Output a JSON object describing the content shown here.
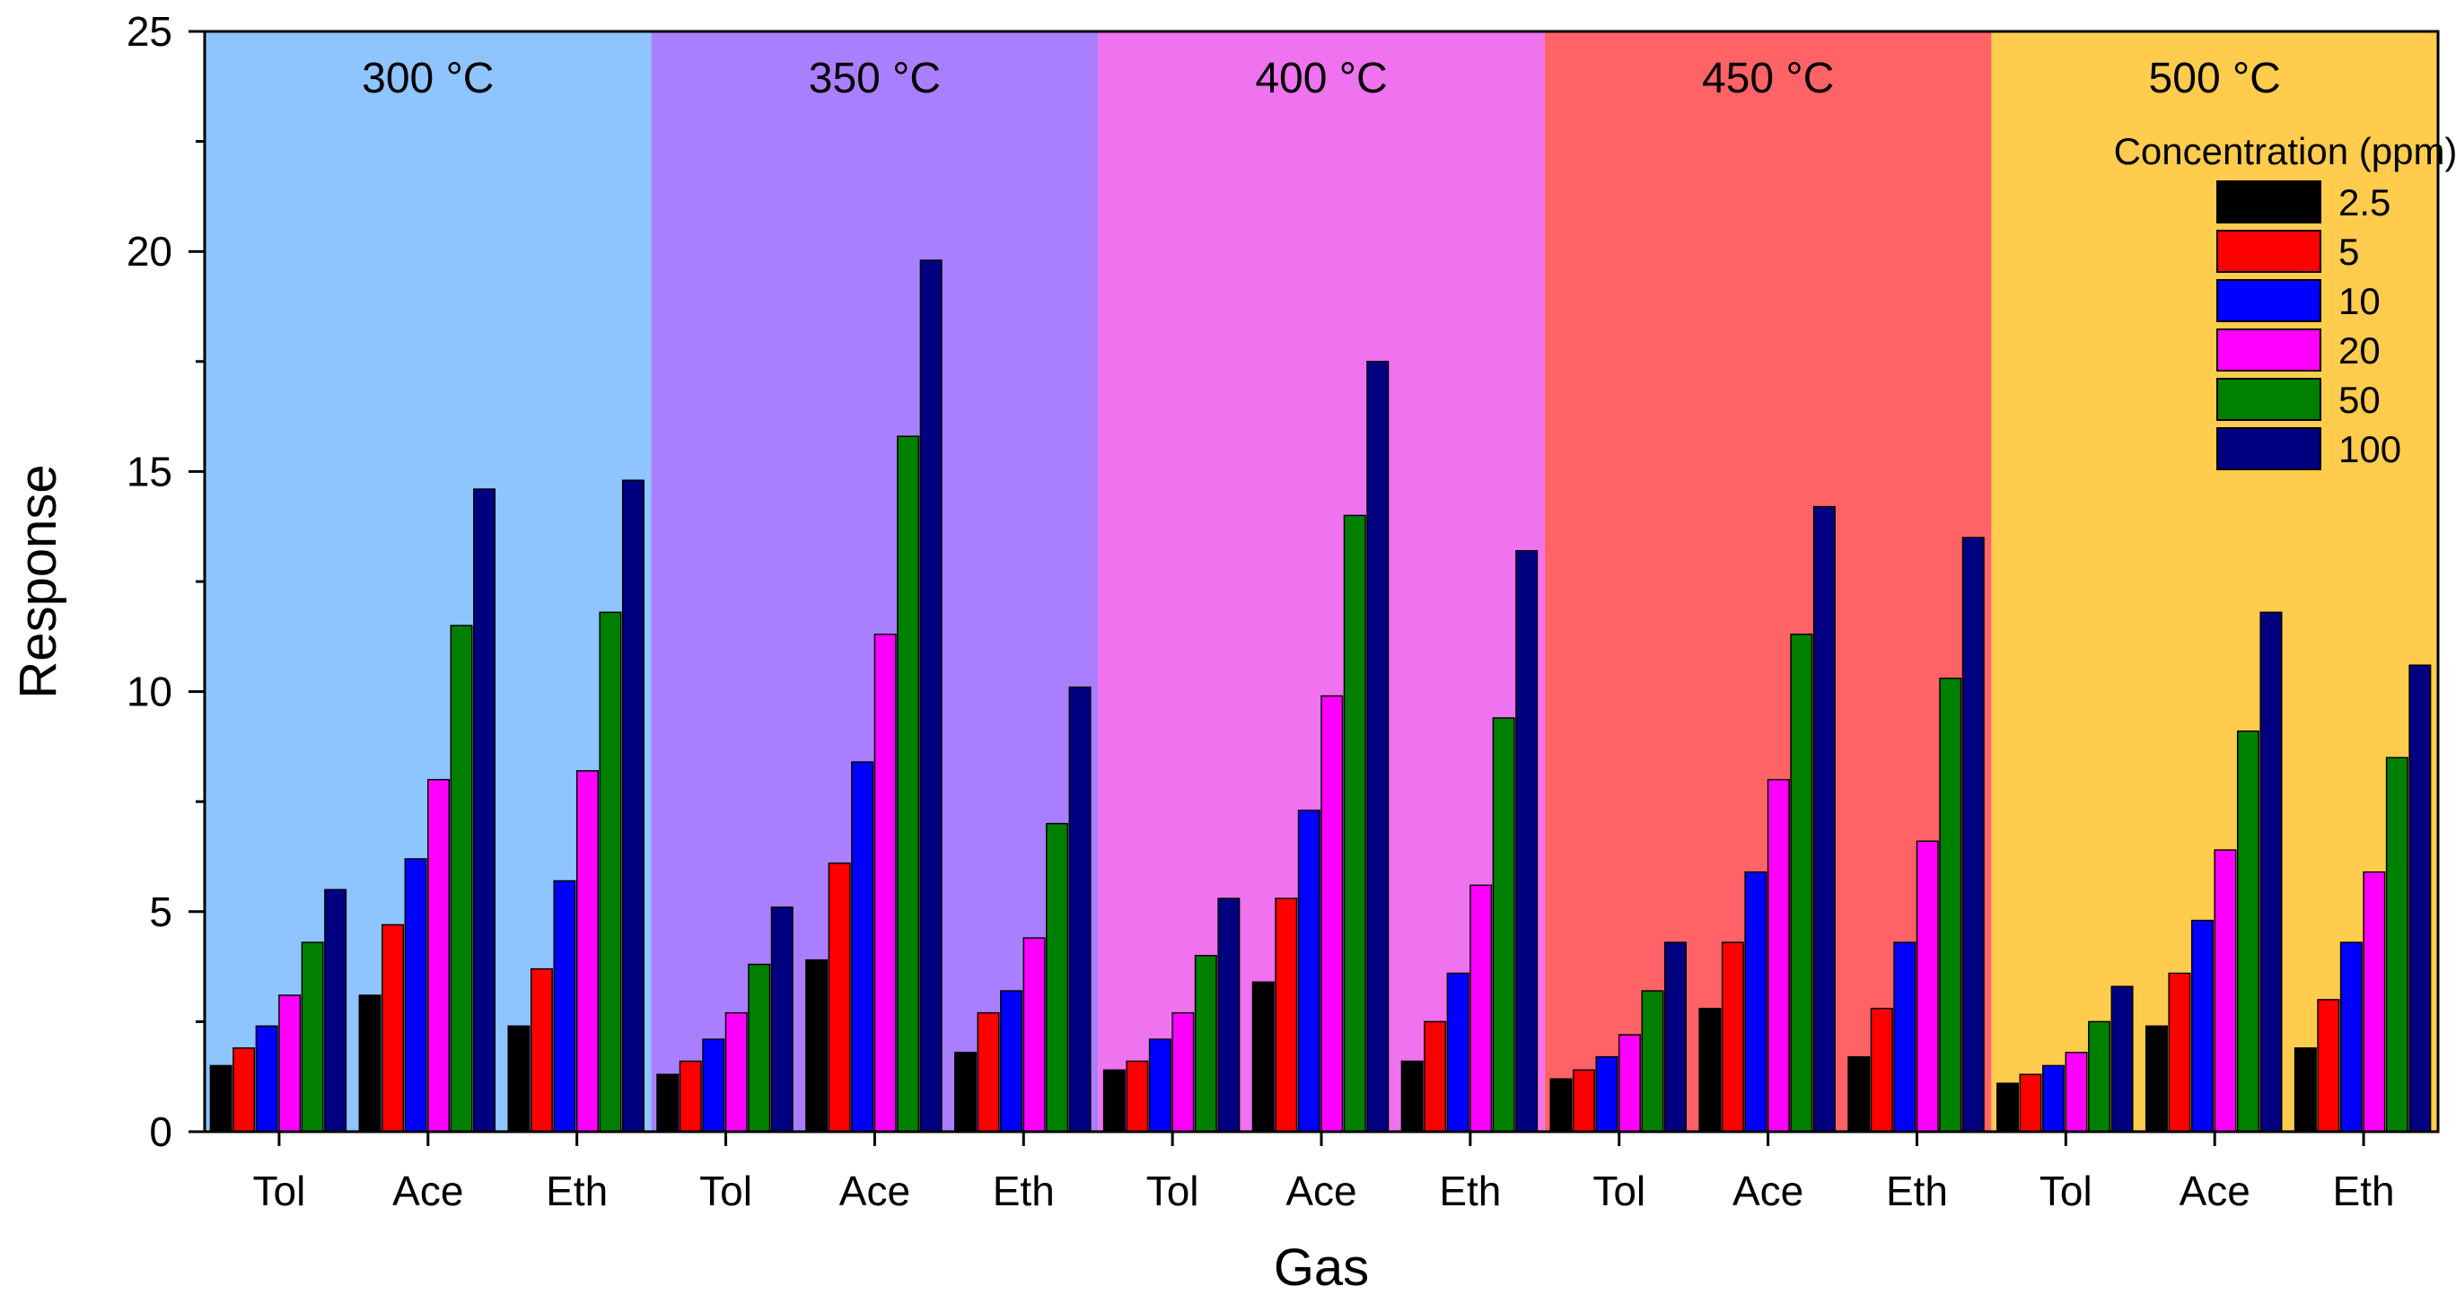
{
  "chart_data": {
    "type": "bar",
    "xlabel": "Gas",
    "ylabel": "Response",
    "ylim": [
      0,
      25
    ],
    "yticks": [
      0,
      5,
      10,
      15,
      20,
      25
    ],
    "legend_title": "Concentration (ppm)",
    "legend_position": "top-right",
    "series": [
      {
        "name": "2.5",
        "color": "#000000"
      },
      {
        "name": "5",
        "color": "#ff0000"
      },
      {
        "name": "10",
        "color": "#0000ff"
      },
      {
        "name": "20",
        "color": "#ff00ff"
      },
      {
        "name": "50",
        "color": "#008000"
      },
      {
        "name": "100",
        "color": "#000080"
      }
    ],
    "panels": [
      {
        "title": "300 °C",
        "background": "#8ec5ff",
        "groups": [
          {
            "gas": "Tol",
            "values": [
              1.5,
              1.9,
              2.4,
              3.1,
              4.3,
              5.5
            ]
          },
          {
            "gas": "Ace",
            "values": [
              3.1,
              4.7,
              6.2,
              8.0,
              11.5,
              14.6
            ]
          },
          {
            "gas": "Eth",
            "values": [
              2.4,
              3.7,
              5.7,
              8.2,
              11.8,
              14.8
            ]
          }
        ]
      },
      {
        "title": "350 °C",
        "background": "#aa7fff",
        "groups": [
          {
            "gas": "Tol",
            "values": [
              1.3,
              1.6,
              2.1,
              2.7,
              3.8,
              5.1
            ]
          },
          {
            "gas": "Ace",
            "values": [
              3.9,
              6.1,
              8.4,
              11.3,
              15.8,
              19.8
            ]
          },
          {
            "gas": "Eth",
            "values": [
              1.8,
              2.7,
              3.2,
              4.4,
              7.0,
              10.1
            ]
          }
        ]
      },
      {
        "title": "400 °C",
        "background": "#ef72ef",
        "groups": [
          {
            "gas": "Tol",
            "values": [
              1.4,
              1.6,
              2.1,
              2.7,
              4.0,
              5.3
            ]
          },
          {
            "gas": "Ace",
            "values": [
              3.4,
              5.3,
              7.3,
              9.9,
              14.0,
              17.5
            ]
          },
          {
            "gas": "Eth",
            "values": [
              1.6,
              2.5,
              3.6,
              5.6,
              9.4,
              13.2
            ]
          }
        ]
      },
      {
        "title": "450 °C",
        "background": "#ff6366",
        "groups": [
          {
            "gas": "Tol",
            "values": [
              1.2,
              1.4,
              1.7,
              2.2,
              3.2,
              4.3
            ]
          },
          {
            "gas": "Ace",
            "values": [
              2.8,
              4.3,
              5.9,
              8.0,
              11.3,
              14.2
            ]
          },
          {
            "gas": "Eth",
            "values": [
              1.7,
              2.8,
              4.3,
              6.6,
              10.3,
              13.5
            ]
          }
        ]
      },
      {
        "title": "500 °C",
        "background": "#ffcc4d",
        "groups": [
          {
            "gas": "Tol",
            "values": [
              1.1,
              1.3,
              1.5,
              1.8,
              2.5,
              3.3
            ]
          },
          {
            "gas": "Ace",
            "values": [
              2.4,
              3.6,
              4.8,
              6.4,
              9.1,
              11.8
            ]
          },
          {
            "gas": "Eth",
            "values": [
              1.9,
              3.0,
              4.3,
              5.9,
              8.5,
              10.6
            ]
          }
        ]
      }
    ]
  }
}
